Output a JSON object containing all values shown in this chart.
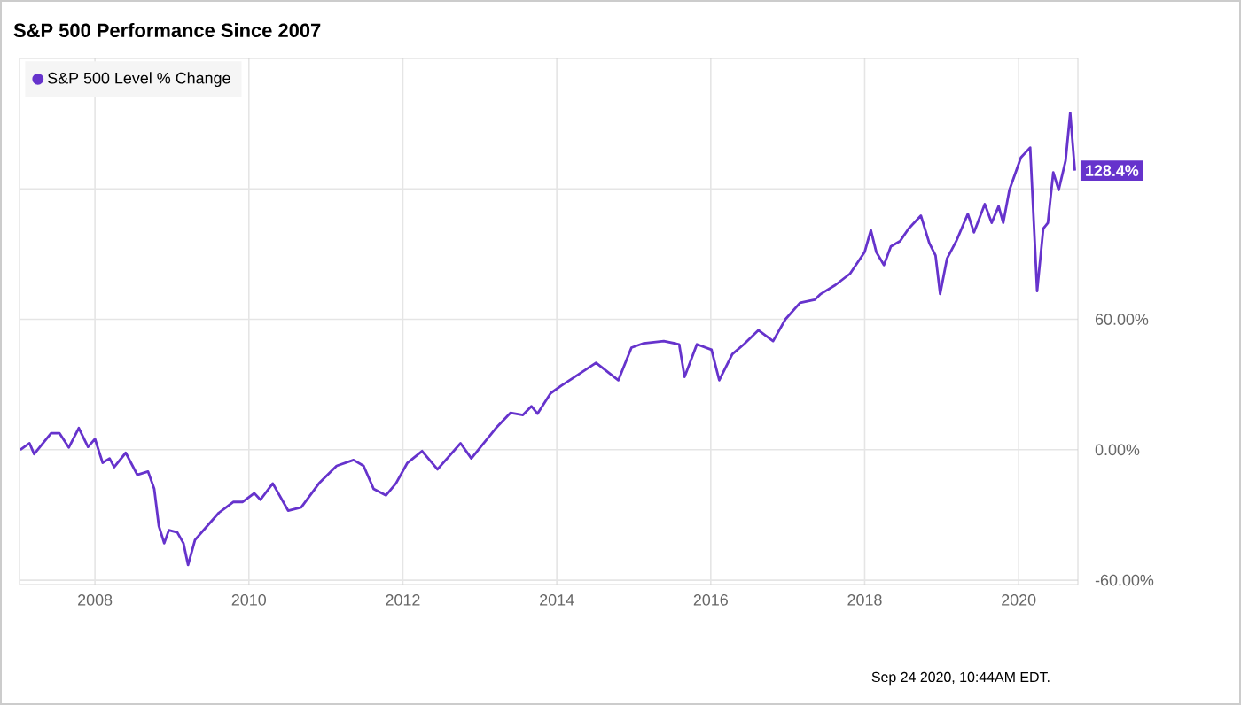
{
  "chart_data": {
    "type": "line",
    "title": "S&P 500 Performance Since 2007",
    "x": [
      2007.03,
      2007.15,
      2007.21,
      2007.43,
      2007.54,
      2007.66,
      2007.79,
      2007.91,
      2008.0,
      2008.1,
      2008.19,
      2008.25,
      2008.4,
      2008.55,
      2008.69,
      2008.77,
      2008.83,
      2008.9,
      2008.96,
      2009.07,
      2009.15,
      2009.21,
      2009.3,
      2009.46,
      2009.61,
      2009.8,
      2009.92,
      2010.07,
      2010.15,
      2010.31,
      2010.51,
      2010.68,
      2010.91,
      2011.14,
      2011.36,
      2011.49,
      2011.62,
      2011.78,
      2011.91,
      2012.06,
      2012.25,
      2012.45,
      2012.75,
      2012.89,
      2013.21,
      2013.4,
      2013.56,
      2013.67,
      2013.75,
      2013.92,
      2014.06,
      2014.21,
      2014.51,
      2014.8,
      2014.97,
      2015.13,
      2015.39,
      2015.59,
      2015.66,
      2015.82,
      2016.01,
      2016.11,
      2016.28,
      2016.43,
      2016.62,
      2016.81,
      2016.97,
      2017.16,
      2017.35,
      2017.43,
      2017.62,
      2017.81,
      2018.0,
      2018.08,
      2018.15,
      2018.25,
      2018.34,
      2018.46,
      2018.57,
      2018.73,
      2018.84,
      2018.92,
      2018.98,
      2019.07,
      2019.19,
      2019.34,
      2019.42,
      2019.56,
      2019.65,
      2019.74,
      2019.8,
      2019.88,
      2020.03,
      2020.15,
      2020.24,
      2020.32,
      2020.38,
      2020.45,
      2020.52,
      2020.61,
      2020.67,
      2020.73
    ],
    "series": [
      {
        "name": "S&P 500 Level % Change",
        "color": "#6633cc",
        "values": [
          0,
          3,
          -2,
          7.6,
          7.6,
          1,
          10,
          1.3,
          5,
          -6,
          -4,
          -8,
          -1.4,
          -11.5,
          -10,
          -18,
          -35,
          -43,
          -37,
          -38,
          -43,
          -53,
          -41.5,
          -35,
          -29,
          -24,
          -24,
          -20,
          -23,
          -15.5,
          -28,
          -26.5,
          -15.5,
          -7.4,
          -4.7,
          -7.4,
          -18,
          -21,
          -15.5,
          -6,
          -0.6,
          -9,
          3,
          -4,
          10,
          17,
          16,
          20,
          16.6,
          26,
          29.5,
          33,
          40,
          32,
          47,
          49,
          50,
          48.5,
          33.5,
          48.5,
          46,
          32,
          44,
          48.5,
          55,
          50,
          60,
          67.6,
          69,
          71.7,
          75.8,
          81,
          91,
          101,
          91,
          85,
          93.5,
          96,
          101.7,
          107.7,
          95,
          89.4,
          71.7,
          88,
          96,
          108.5,
          100,
          113,
          104.4,
          112,
          104.4,
          119.5,
          134.5,
          139,
          73,
          101.7,
          104.4,
          127.6,
          119.5,
          133,
          155,
          128.4
        ]
      }
    ],
    "xlim": [
      2007.02,
      2020.77
    ],
    "ylim": [
      -62,
      180
    ],
    "xticks": [
      2008,
      2010,
      2012,
      2014,
      2016,
      2018,
      2020
    ],
    "yticks": [
      {
        "value": -60,
        "label": "-60.00%"
      },
      {
        "value": 0,
        "label": "0.00%"
      },
      {
        "value": 60,
        "label": "60.00%"
      },
      {
        "value": 120,
        "label": null
      }
    ],
    "grid": true,
    "legend": "top left",
    "annotations": [
      {
        "text": "128.4%",
        "x": 2020.73,
        "y": 128.4
      },
      "Sep 24 2020, 10:44AM EDT."
    ]
  }
}
